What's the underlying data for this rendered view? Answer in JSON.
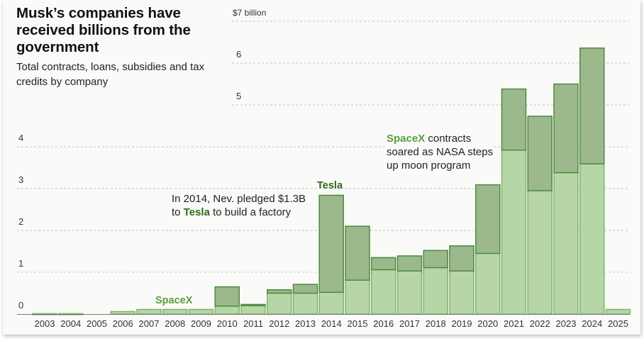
{
  "header": {
    "title": "Musk’s companies have received billions from the government",
    "subtitle": "Total contracts, loans, subsidies and tax credits by company"
  },
  "colors": {
    "spacex_fill": "#b7d6a7",
    "spacex_stroke": "#7db56a",
    "tesla_fill": "#9bb98d",
    "tesla_stroke": "#4e8a3e",
    "spacex_label": "#5a9e3c",
    "tesla_label": "#2e6b1f"
  },
  "annotations": {
    "tesla_2014_pre": "In 2014, Nev. pledged $1.3B",
    "tesla_2014_to": "to ",
    "tesla_2014_name": "Tesla",
    "tesla_2014_post": " to build a factory",
    "spacex_name": "SpaceX",
    "spacex_post_1": " contracts",
    "spacex_line_2": "soared as NASA steps",
    "spacex_line_3": "up moon program",
    "label_spacex": "SpaceX",
    "label_tesla": "Tesla"
  },
  "chart_data": {
    "type": "bar",
    "stacked": true,
    "title": "Musk’s companies have received billions from the government",
    "subtitle": "Total contracts, loans, subsidies and tax credits by company",
    "xlabel": "",
    "ylabel": "",
    "ylim": [
      0,
      7
    ],
    "yticks": [
      0,
      1,
      2,
      3,
      4,
      5,
      6,
      7
    ],
    "ytick_labels": [
      "0",
      "1",
      "2",
      "3",
      "4",
      "5",
      "6",
      "$7 billion"
    ],
    "grid": true,
    "legend": "none (direct labels)",
    "categories": [
      "2003",
      "2004",
      "2005",
      "2006",
      "2007",
      "2008",
      "2009",
      "2010",
      "2011",
      "2012",
      "2013",
      "2014",
      "2015",
      "2016",
      "2017",
      "2018",
      "2019",
      "2020",
      "2021",
      "2022",
      "2023",
      "2024",
      "2025"
    ],
    "series": [
      {
        "name": "SpaceX",
        "values": [
          0.01,
          0.01,
          0,
          0.06,
          0.11,
          0.11,
          0.11,
          0.19,
          0.2,
          0.5,
          0.5,
          0.52,
          0.81,
          1.06,
          1.03,
          1.11,
          1.03,
          1.45,
          3.92,
          2.95,
          3.38,
          3.59,
          0.11
        ]
      },
      {
        "name": "Tesla",
        "values": [
          0,
          0,
          0,
          0,
          0,
          0,
          0,
          0.46,
          0.03,
          0.08,
          0.21,
          2.32,
          1.29,
          0.29,
          0.36,
          0.41,
          0.6,
          1.64,
          1.46,
          1.78,
          2.12,
          2.77,
          0
        ]
      }
    ],
    "annotations": [
      {
        "text": "SpaceX",
        "near": "2008"
      },
      {
        "text": "Tesla",
        "near": "2014"
      },
      {
        "text": "In 2014, Nev. pledged $1.3B to Tesla to build a factory",
        "near": "2014"
      },
      {
        "text": "SpaceX contracts soared as NASA steps up moon program",
        "near": "2021"
      }
    ]
  }
}
